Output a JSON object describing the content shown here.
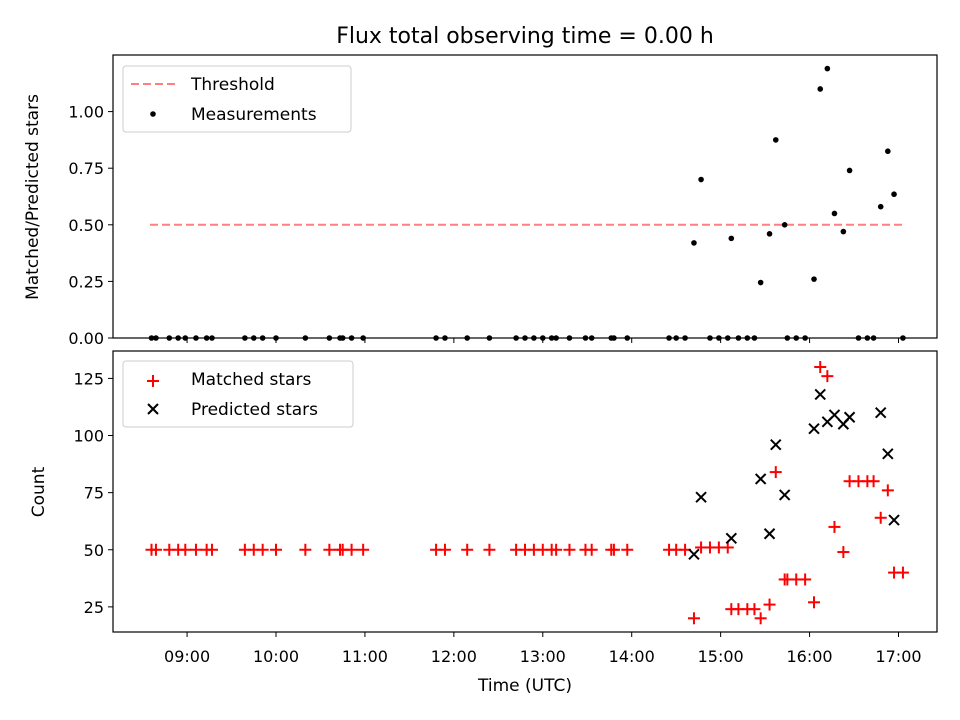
{
  "chart_data": [
    {
      "type": "scatter",
      "title": "Flux total observing time = 0.00 h",
      "ylabel": "Matched/Predicted stars",
      "xlabel": "",
      "xlim": [
        8.167,
        17.433
      ],
      "ylim": [
        0,
        1.25
      ],
      "yticks": [
        0.0,
        0.25,
        0.5,
        0.75,
        1.0
      ],
      "ytick_labels": [
        "0.00",
        "0.25",
        "0.50",
        "0.75",
        "1.00"
      ],
      "threshold": {
        "value": 0.5,
        "x_range": [
          8.583,
          17.05
        ],
        "color": "#ff7f7f"
      },
      "legend": {
        "position": "top-left",
        "entries": [
          "Threshold",
          "Measurements"
        ]
      },
      "series": [
        {
          "name": "Measurements",
          "color": "#000000",
          "points": [
            [
              8.6,
              0
            ],
            [
              8.65,
              0
            ],
            [
              8.8,
              0
            ],
            [
              8.9,
              0
            ],
            [
              8.98,
              0
            ],
            [
              9.1,
              0
            ],
            [
              9.22,
              0
            ],
            [
              9.28,
              0
            ],
            [
              9.65,
              0
            ],
            [
              9.75,
              0
            ],
            [
              9.85,
              0
            ],
            [
              10.0,
              0
            ],
            [
              10.33,
              0
            ],
            [
              10.6,
              0
            ],
            [
              10.72,
              0
            ],
            [
              10.75,
              0
            ],
            [
              10.85,
              0
            ],
            [
              10.98,
              0
            ],
            [
              11.8,
              0
            ],
            [
              11.9,
              0
            ],
            [
              12.15,
              0
            ],
            [
              12.4,
              0
            ],
            [
              12.7,
              0
            ],
            [
              12.8,
              0
            ],
            [
              12.9,
              0
            ],
            [
              13.0,
              0
            ],
            [
              13.1,
              0
            ],
            [
              13.15,
              0
            ],
            [
              13.3,
              0
            ],
            [
              13.48,
              0
            ],
            [
              13.55,
              0
            ],
            [
              13.77,
              0
            ],
            [
              13.8,
              0
            ],
            [
              13.95,
              0
            ],
            [
              14.42,
              0
            ],
            [
              14.5,
              0
            ],
            [
              14.6,
              0
            ],
            [
              14.7,
              0.42
            ],
            [
              14.78,
              0.7
            ],
            [
              14.88,
              0
            ],
            [
              14.98,
              0
            ],
            [
              15.08,
              0
            ],
            [
              15.12,
              0.44
            ],
            [
              15.2,
              0
            ],
            [
              15.3,
              0
            ],
            [
              15.38,
              0
            ],
            [
              15.45,
              0.245
            ],
            [
              15.55,
              0.46
            ],
            [
              15.62,
              0.875
            ],
            [
              15.72,
              0.5
            ],
            [
              15.75,
              0
            ],
            [
              15.85,
              0
            ],
            [
              15.95,
              0
            ],
            [
              16.05,
              0.26
            ],
            [
              16.12,
              1.1
            ],
            [
              16.2,
              1.19
            ],
            [
              16.28,
              0.55
            ],
            [
              16.38,
              0.47
            ],
            [
              16.45,
              0.74
            ],
            [
              16.55,
              0
            ],
            [
              16.65,
              0
            ],
            [
              16.72,
              0
            ],
            [
              16.8,
              0.58
            ],
            [
              16.88,
              0.825
            ],
            [
              16.95,
              0.635
            ],
            [
              17.05,
              0
            ]
          ]
        }
      ]
    },
    {
      "type": "scatter",
      "title": "",
      "ylabel": "Count",
      "xlabel": "Time (UTC)",
      "xlim": [
        8.167,
        17.433
      ],
      "ylim": [
        14,
        137
      ],
      "yticks": [
        25,
        50,
        75,
        100,
        125
      ],
      "ytick_labels": [
        "25",
        "50",
        "75",
        "100",
        "125"
      ],
      "xticks": [
        9,
        10,
        11,
        12,
        13,
        14,
        15,
        16,
        17
      ],
      "xtick_labels": [
        "09:00",
        "10:00",
        "11:00",
        "12:00",
        "13:00",
        "14:00",
        "15:00",
        "16:00",
        "17:00"
      ],
      "legend": {
        "position": "top-left",
        "entries": [
          "Matched stars",
          "Predicted stars"
        ]
      },
      "series": [
        {
          "name": "Matched stars",
          "marker": "plus",
          "color": "#ff0000",
          "points": [
            [
              8.6,
              50
            ],
            [
              8.65,
              50
            ],
            [
              8.8,
              50
            ],
            [
              8.9,
              50
            ],
            [
              8.98,
              50
            ],
            [
              9.1,
              50
            ],
            [
              9.22,
              50
            ],
            [
              9.28,
              50
            ],
            [
              9.65,
              50
            ],
            [
              9.75,
              50
            ],
            [
              9.85,
              50
            ],
            [
              10.0,
              50
            ],
            [
              10.33,
              50
            ],
            [
              10.6,
              50
            ],
            [
              10.72,
              50
            ],
            [
              10.75,
              50
            ],
            [
              10.85,
              50
            ],
            [
              10.98,
              50
            ],
            [
              11.8,
              50
            ],
            [
              11.9,
              50
            ],
            [
              12.15,
              50
            ],
            [
              12.4,
              50
            ],
            [
              12.7,
              50
            ],
            [
              12.8,
              50
            ],
            [
              12.9,
              50
            ],
            [
              13.0,
              50
            ],
            [
              13.1,
              50
            ],
            [
              13.15,
              50
            ],
            [
              13.3,
              50
            ],
            [
              13.48,
              50
            ],
            [
              13.55,
              50
            ],
            [
              13.77,
              50
            ],
            [
              13.8,
              50
            ],
            [
              13.95,
              50
            ],
            [
              14.42,
              50
            ],
            [
              14.5,
              50
            ],
            [
              14.6,
              50
            ],
            [
              14.7,
              20
            ],
            [
              14.78,
              51
            ],
            [
              14.88,
              51
            ],
            [
              14.98,
              51
            ],
            [
              15.08,
              51
            ],
            [
              15.12,
              24
            ],
            [
              15.2,
              24
            ],
            [
              15.3,
              24
            ],
            [
              15.38,
              24
            ],
            [
              15.45,
              20
            ],
            [
              15.55,
              26
            ],
            [
              15.62,
              84
            ],
            [
              15.72,
              37
            ],
            [
              15.75,
              37
            ],
            [
              15.85,
              37
            ],
            [
              15.95,
              37
            ],
            [
              16.05,
              27
            ],
            [
              16.12,
              130
            ],
            [
              16.2,
              126
            ],
            [
              16.28,
              60
            ],
            [
              16.38,
              49
            ],
            [
              16.45,
              80
            ],
            [
              16.55,
              80
            ],
            [
              16.65,
              80
            ],
            [
              16.72,
              80
            ],
            [
              16.8,
              64
            ],
            [
              16.88,
              76
            ],
            [
              16.95,
              40
            ],
            [
              17.05,
              40
            ]
          ]
        },
        {
          "name": "Predicted stars",
          "marker": "x",
          "color": "#000000",
          "points": [
            [
              14.7,
              48
            ],
            [
              14.78,
              73
            ],
            [
              15.12,
              55
            ],
            [
              15.45,
              81
            ],
            [
              15.55,
              57
            ],
            [
              15.62,
              96
            ],
            [
              15.72,
              74
            ],
            [
              16.05,
              103
            ],
            [
              16.12,
              118
            ],
            [
              16.2,
              106
            ],
            [
              16.28,
              109
            ],
            [
              16.38,
              105
            ],
            [
              16.45,
              108
            ],
            [
              16.8,
              110
            ],
            [
              16.88,
              92
            ],
            [
              16.95,
              63
            ]
          ]
        }
      ]
    }
  ]
}
